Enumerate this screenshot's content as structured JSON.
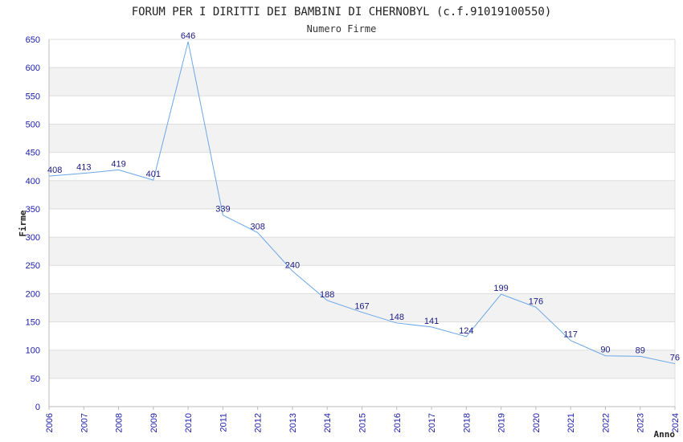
{
  "chart_data": {
    "type": "line",
    "title": "FORUM PER I DIRITTI DEI BAMBINI DI CHERNOBYL (c.f.91019100550)",
    "subtitle": "Numero Firme",
    "xlabel": "Anno",
    "ylabel": "Firme",
    "ylim": [
      0,
      650
    ],
    "ytick_step": 50,
    "grid": true,
    "categories": [
      "2006",
      "2007",
      "2008",
      "2009",
      "2010",
      "2011",
      "2012",
      "2013",
      "2014",
      "2015",
      "2016",
      "2017",
      "2018",
      "2019",
      "2020",
      "2021",
      "2022",
      "2023",
      "2024"
    ],
    "series": [
      {
        "values": [
          408,
          413,
          419,
          401,
          646,
          339,
          308,
          240,
          188,
          167,
          148,
          141,
          124,
          199,
          176,
          117,
          90,
          89,
          76
        ],
        "color": "#6aa6e8"
      }
    ],
    "colors": {
      "band": "#f2f2f2",
      "gridline": "#dddddd",
      "axis": "#bbbbbb",
      "tick_text": "#1a1aa6"
    }
  }
}
